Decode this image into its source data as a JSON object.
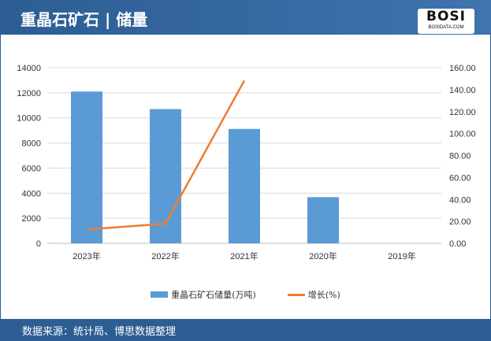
{
  "header": {
    "title": "重晶石矿石 | 储量",
    "logo_text": "BOSI",
    "logo_sub": "BOSIDATA.COM"
  },
  "footer": {
    "source": "数据来源：统计局、博思数据整理"
  },
  "colors": {
    "bar": "#5b9bd5",
    "line": "#ed7d31",
    "header": "#2c5d93"
  },
  "chart_data": {
    "type": "bar+line",
    "categories": [
      "2023年",
      "2022年",
      "2021年",
      "2020年",
      "2019年"
    ],
    "series": [
      {
        "name": "重晶石矿石储量(万吨)",
        "type": "bar",
        "axis": "left",
        "values": [
          12100,
          10700,
          9120,
          3680,
          null
        ]
      },
      {
        "name": "增长(%)",
        "type": "line",
        "axis": "right",
        "values": [
          12.7,
          17.9,
          148.3,
          null,
          null
        ]
      }
    ],
    "y_left": {
      "range": [
        0,
        14000
      ],
      "ticks": [
        "0",
        "2000",
        "4000",
        "6000",
        "8000",
        "10000",
        "12000",
        "14000"
      ]
    },
    "y_right": {
      "range": [
        0,
        160
      ],
      "ticks": [
        "0.00",
        "20.00",
        "40.00",
        "60.00",
        "80.00",
        "100.00",
        "120.00",
        "140.00",
        "160.00"
      ]
    },
    "grid": true,
    "legend": "bottom"
  }
}
